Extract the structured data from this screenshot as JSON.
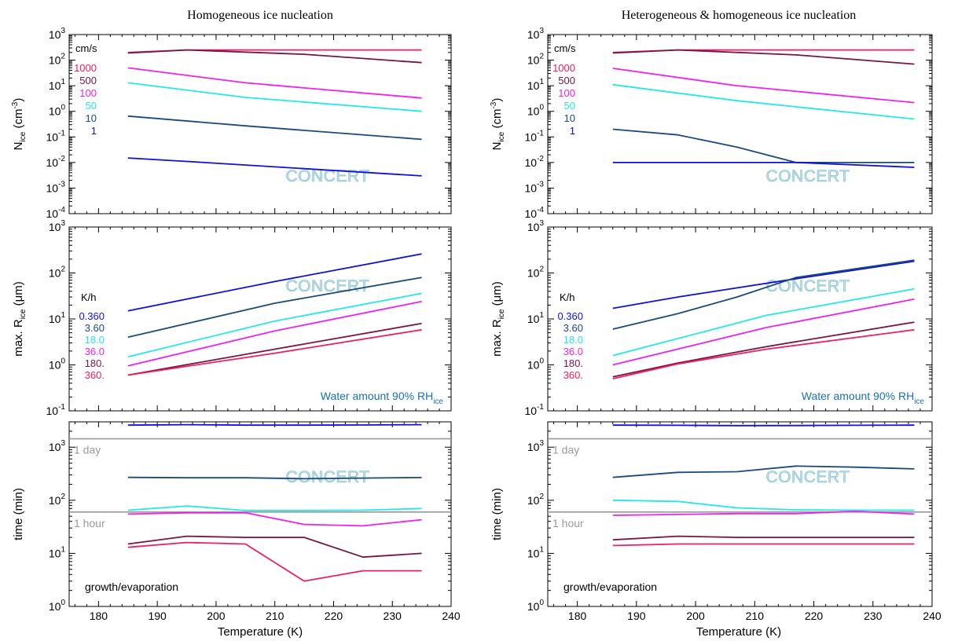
{
  "colors": {
    "v1000": "#ee1f5e",
    "v500": "#7a1446",
    "v100": "#ee22ee",
    "v50": "#22e8e8",
    "v10": "#1a4a7a",
    "v1": "#1010dd",
    "daylines": "#999999",
    "water_text": "#1a6fae"
  },
  "columns": [
    {
      "title": "Homogeneous ice nucleation"
    },
    {
      "title": "Heterogeneous & homogeneous ice nucleation"
    }
  ],
  "axes": {
    "xlabel": "Temperature (K)",
    "xticks": [
      "180",
      "190",
      "200",
      "210",
      "220",
      "230",
      "240"
    ],
    "row1_ylabel_main": "N",
    "row1_ylabel_sub": "ice",
    "row1_ylabel_unit": "(cm",
    "row1_ylabel_exp": "-3",
    "row1_ylabel_close": ")",
    "row2_ylabel_main": "max. R",
    "row2_ylabel_sub": "ice",
    "row2_ylabel_unit": "(μm)",
    "row3_ylabel": "time (min)"
  },
  "legends": {
    "row1_unit": "cm/s",
    "row1_values": [
      "1000",
      "500",
      "100",
      "50",
      "10",
      "1"
    ],
    "row2_unit": "K/h",
    "row2_values": [
      "0.360",
      "3.60",
      "18.0",
      "36.0",
      "180.",
      "360."
    ]
  },
  "annotations": {
    "watermark": "CONCERT",
    "water_main": "Water amount 90% RH",
    "water_sub": "ice",
    "one_day": "1 day",
    "one_hour": "1 hour",
    "growth": "growth/evaporation"
  },
  "chart_data": [
    {
      "type": "line",
      "panel": "homogeneous",
      "row": 1,
      "yscale": "log",
      "xlim": [
        175,
        240
      ],
      "ylim": [
        0.0001,
        1000
      ],
      "xlabel": "Temperature (K)",
      "ylabel": "N_ice (cm^-3)",
      "series": [
        {
          "name": "1000",
          "x": [
            185,
            195,
            235
          ],
          "y": [
            200,
            250,
            250
          ]
        },
        {
          "name": "500",
          "x": [
            185,
            195,
            215,
            235
          ],
          "y": [
            190,
            250,
            170,
            80
          ]
        },
        {
          "name": "100",
          "x": [
            185,
            205,
            235
          ],
          "y": [
            50,
            13,
            3.3
          ]
        },
        {
          "name": "50",
          "x": [
            185,
            205,
            235
          ],
          "y": [
            13,
            3.5,
            1.0
          ]
        },
        {
          "name": "10",
          "x": [
            185,
            205,
            235
          ],
          "y": [
            0.65,
            0.27,
            0.08
          ]
        },
        {
          "name": "1",
          "x": [
            185,
            195,
            235
          ],
          "y": [
            0.015,
            0.011,
            0.003
          ]
        }
      ]
    },
    {
      "type": "line",
      "panel": "homogeneous",
      "row": 2,
      "yscale": "log",
      "xlim": [
        175,
        240
      ],
      "ylim": [
        0.1,
        1000
      ],
      "xlabel": "Temperature (K)",
      "ylabel": "max. R_ice (μm)",
      "series": [
        {
          "name": "0.360",
          "x": [
            185,
            210,
            235
          ],
          "y": [
            15,
            65,
            260
          ]
        },
        {
          "name": "3.60",
          "x": [
            185,
            210,
            235
          ],
          "y": [
            4.0,
            22,
            80
          ]
        },
        {
          "name": "18.0",
          "x": [
            185,
            210,
            235
          ],
          "y": [
            1.5,
            9,
            36
          ]
        },
        {
          "name": "36.0",
          "x": [
            185,
            210,
            235
          ],
          "y": [
            0.95,
            5.5,
            24
          ]
        },
        {
          "name": "180.",
          "x": [
            185,
            210,
            235
          ],
          "y": [
            0.6,
            2.2,
            8.0
          ]
        },
        {
          "name": "360.",
          "x": [
            185,
            210,
            235
          ],
          "y": [
            0.6,
            1.8,
            5.8
          ]
        }
      ]
    },
    {
      "type": "line",
      "panel": "homogeneous",
      "row": 3,
      "yscale": "log",
      "xlim": [
        175,
        240
      ],
      "ylim": [
        1,
        3000
      ],
      "xlabel": "Temperature (K)",
      "ylabel": "time (min)",
      "reference_lines": [
        {
          "label": "1 day",
          "y": 1440
        },
        {
          "label": "1 hour",
          "y": 60
        }
      ],
      "series": [
        {
          "name": "0.360",
          "x": [
            185,
            195,
            205,
            215,
            225,
            235
          ],
          "y": [
            2600,
            2650,
            2600,
            2600,
            2620,
            2650
          ]
        },
        {
          "name": "3.60",
          "x": [
            185,
            195,
            205,
            215,
            225,
            235
          ],
          "y": [
            270,
            265,
            265,
            255,
            262,
            268
          ]
        },
        {
          "name": "18.0",
          "x": [
            185,
            195,
            205,
            215,
            225,
            235
          ],
          "y": [
            65,
            78,
            64,
            64,
            65,
            70
          ]
        },
        {
          "name": "36.0",
          "x": [
            185,
            195,
            205,
            215,
            225,
            235
          ],
          "y": [
            55,
            58,
            58,
            35,
            33,
            43
          ]
        },
        {
          "name": "180.",
          "x": [
            185,
            195,
            205,
            215,
            225,
            235
          ],
          "y": [
            15,
            21,
            20,
            20,
            8.5,
            10
          ]
        },
        {
          "name": "360.",
          "x": [
            185,
            195,
            205,
            215,
            225,
            235
          ],
          "y": [
            13,
            16,
            15,
            3.0,
            4.7,
            4.7
          ]
        }
      ]
    },
    {
      "type": "line",
      "panel": "heterogeneous_homogeneous",
      "row": 1,
      "yscale": "log",
      "xlim": [
        175,
        240
      ],
      "ylim": [
        0.0001,
        1000
      ],
      "xlabel": "Temperature (K)",
      "ylabel": "N_ice (cm^-3)",
      "series": [
        {
          "name": "1000",
          "x": [
            186,
            197,
            237
          ],
          "y": [
            200,
            250,
            250
          ]
        },
        {
          "name": "500",
          "x": [
            186,
            197,
            217,
            237
          ],
          "y": [
            190,
            250,
            160,
            70
          ]
        },
        {
          "name": "100",
          "x": [
            186,
            207,
            237
          ],
          "y": [
            48,
            10,
            2.2
          ]
        },
        {
          "name": "50",
          "x": [
            186,
            207,
            237
          ],
          "y": [
            11,
            2.6,
            0.5
          ]
        },
        {
          "name": "10",
          "x": [
            186,
            197,
            207,
            217,
            237
          ],
          "y": [
            0.2,
            0.12,
            0.04,
            0.01,
            0.01
          ]
        },
        {
          "name": "1",
          "x": [
            186,
            217,
            237
          ],
          "y": [
            0.01,
            0.01,
            0.0065
          ]
        }
      ]
    },
    {
      "type": "line",
      "panel": "heterogeneous_homogeneous",
      "row": 2,
      "yscale": "log",
      "xlim": [
        175,
        240
      ],
      "ylim": [
        0.1,
        1000
      ],
      "xlabel": "Temperature (K)",
      "ylabel": "max. R_ice (μm)",
      "series": [
        {
          "name": "0.360",
          "x": [
            186,
            197,
            217,
            237
          ],
          "y": [
            17,
            30,
            75,
            180
          ]
        },
        {
          "name": "3.60",
          "x": [
            186,
            197,
            207,
            217,
            237
          ],
          "y": [
            6,
            13,
            30,
            80,
            190
          ]
        },
        {
          "name": "18.0",
          "x": [
            186,
            212,
            237
          ],
          "y": [
            1.6,
            12,
            45
          ]
        },
        {
          "name": "36.0",
          "x": [
            186,
            212,
            237
          ],
          "y": [
            1.0,
            6.5,
            27
          ]
        },
        {
          "name": "180.",
          "x": [
            186,
            197,
            212,
            237
          ],
          "y": [
            0.55,
            1.1,
            2.5,
            8.5
          ]
        },
        {
          "name": "360.",
          "x": [
            186,
            197,
            212,
            237
          ],
          "y": [
            0.5,
            1.05,
            2.2,
            5.8
          ]
        }
      ]
    },
    {
      "type": "line",
      "panel": "heterogeneous_homogeneous",
      "row": 3,
      "yscale": "log",
      "xlim": [
        175,
        240
      ],
      "ylim": [
        1,
        3000
      ],
      "xlabel": "Temperature (K)",
      "ylabel": "time (min)",
      "reference_lines": [
        {
          "label": "1 day",
          "y": 1440
        },
        {
          "label": "1 hour",
          "y": 60
        }
      ],
      "series": [
        {
          "name": "0.360",
          "x": [
            186,
            197,
            207,
            217,
            227,
            237
          ],
          "y": [
            2600,
            2580,
            2550,
            2560,
            2580,
            2600
          ]
        },
        {
          "name": "3.60",
          "x": [
            186,
            197,
            207,
            217,
            227,
            237
          ],
          "y": [
            270,
            335,
            345,
            440,
            420,
            390
          ]
        },
        {
          "name": "18.0",
          "x": [
            186,
            197,
            207,
            217,
            227,
            237
          ],
          "y": [
            100,
            95,
            72,
            66,
            65,
            65
          ]
        },
        {
          "name": "36.0",
          "x": [
            186,
            197,
            207,
            217,
            227,
            237
          ],
          "y": [
            52,
            54,
            56,
            56,
            62,
            55
          ]
        },
        {
          "name": "180.",
          "x": [
            186,
            197,
            207,
            217,
            227,
            237
          ],
          "y": [
            18,
            21,
            20,
            20,
            20,
            20
          ]
        },
        {
          "name": "360.",
          "x": [
            186,
            197,
            207,
            217,
            227,
            237
          ],
          "y": [
            14,
            15,
            15,
            15,
            15,
            15
          ]
        }
      ]
    }
  ]
}
